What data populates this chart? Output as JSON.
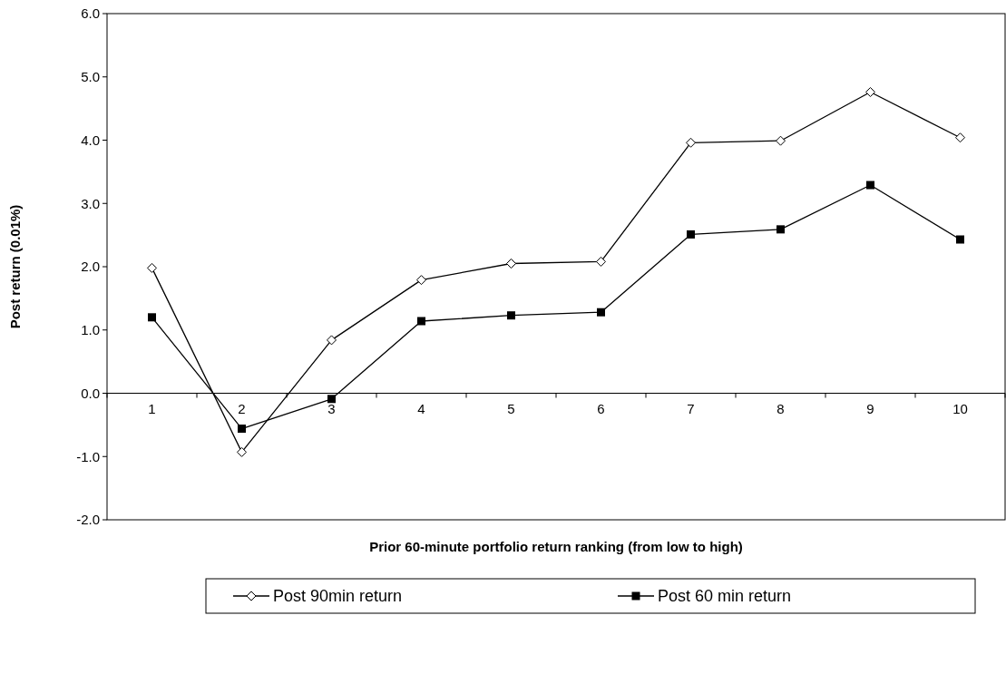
{
  "chart_data": {
    "type": "line",
    "xlabel": "Prior 60-minute portfolio return ranking (from low to high)",
    "ylabel": "Post return (0.01%)",
    "categories": [
      "1",
      "2",
      "3",
      "4",
      "5",
      "6",
      "7",
      "8",
      "9",
      "10"
    ],
    "series": [
      {
        "name": "Post 90min return",
        "color": "#000000",
        "marker": "diamond",
        "values": [
          1.98,
          -0.93,
          0.84,
          1.79,
          2.05,
          2.08,
          3.96,
          3.99,
          4.76,
          4.04
        ]
      },
      {
        "name": "Post 60 min return",
        "color": "#000000",
        "marker": "square",
        "values": [
          1.2,
          -0.56,
          -0.09,
          1.14,
          1.23,
          1.28,
          2.51,
          2.59,
          3.29,
          2.43
        ]
      }
    ],
    "ylim": [
      -2,
      6
    ],
    "yticks": [
      {
        "value": -2,
        "label": "-2.0"
      },
      {
        "value": -1,
        "label": "-1.0"
      },
      {
        "value": 0,
        "label": "0.0"
      },
      {
        "value": 1,
        "label": "1.0"
      },
      {
        "value": 2,
        "label": "2.0"
      },
      {
        "value": 3,
        "label": "3.0"
      },
      {
        "value": 4,
        "label": "4.0"
      },
      {
        "value": 5,
        "label": "5.0"
      },
      {
        "value": 6,
        "label": "6.0"
      }
    ],
    "grid": false,
    "legend": "bottom",
    "line_style": "solid"
  }
}
